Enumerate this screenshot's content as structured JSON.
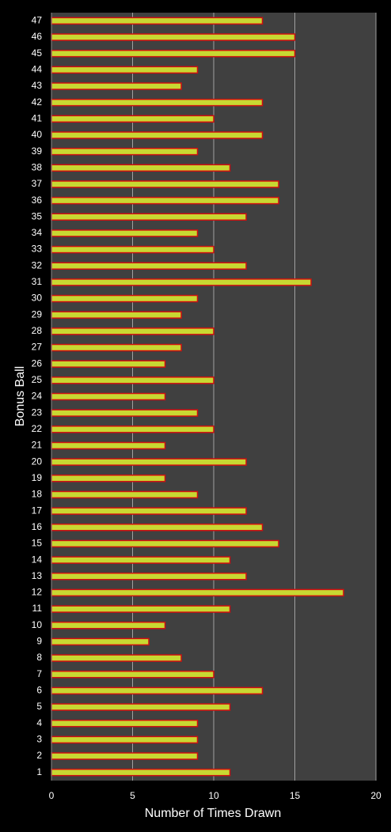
{
  "chart_data": {
    "type": "barh",
    "x_label": "Number of Times Drawn",
    "y_label": "Bonus Ball",
    "categories": [
      "1",
      "2",
      "3",
      "4",
      "5",
      "6",
      "7",
      "8",
      "9",
      "10",
      "11",
      "12",
      "13",
      "14",
      "15",
      "16",
      "17",
      "18",
      "19",
      "20",
      "21",
      "22",
      "23",
      "24",
      "25",
      "26",
      "27",
      "28",
      "29",
      "30",
      "31",
      "32",
      "33",
      "34",
      "35",
      "36",
      "37",
      "38",
      "39",
      "40",
      "41",
      "42",
      "43",
      "44",
      "45",
      "46",
      "47"
    ],
    "values": [
      11,
      9,
      9,
      9,
      11,
      13,
      10,
      8,
      6,
      7,
      11,
      18,
      12,
      11,
      14,
      13,
      12,
      9,
      7,
      12,
      7,
      10,
      9,
      7,
      10,
      7,
      8,
      10,
      8,
      9,
      16,
      12,
      10,
      9,
      12,
      14,
      14,
      11,
      9,
      13,
      10,
      13,
      8,
      9,
      15,
      15,
      13
    ],
    "color": "#c8d832",
    "edgecolor": "#d01010",
    "xlim": [
      0,
      20
    ],
    "xticks": [
      0,
      5,
      10,
      15,
      20
    ],
    "grid": true,
    "plot_background": "#404040"
  }
}
